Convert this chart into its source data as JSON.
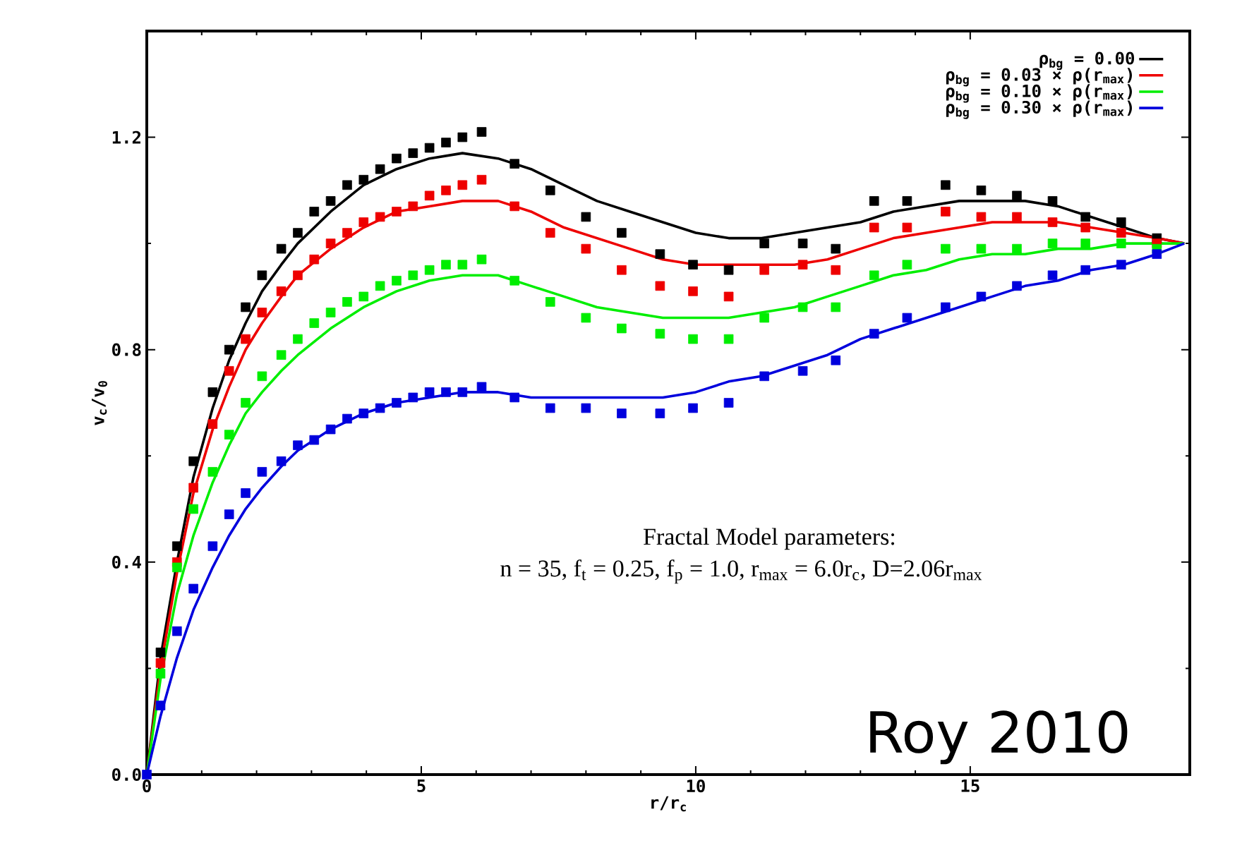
{
  "chart_data": {
    "type": "scatter",
    "xlabel": "r/r$_{c}$",
    "ylabel": "v$_{c}$/v$_{0}$",
    "xlim": [
      0,
      19
    ],
    "ylim": [
      0,
      1.4
    ],
    "xticks": [
      0,
      5,
      10,
      15
    ],
    "yticks": [
      {
        "value": 0,
        "label": "0.0"
      },
      0.4,
      0.8,
      1.2
    ],
    "legend": "top right",
    "series": [
      {
        "marker": "square",
        "color": "#000000",
        "x": [
          0.25,
          0.55,
          0.85,
          1.2,
          1.5,
          1.8,
          2.1,
          2.45,
          2.75,
          3.05,
          3.35,
          3.65,
          3.95,
          4.25,
          4.55,
          4.85,
          5.15,
          5.45,
          5.75,
          6.1,
          6.7,
          7.35,
          8.0,
          8.65,
          9.35,
          9.95,
          10.6,
          11.25,
          11.95,
          12.55,
          13.25,
          13.85,
          14.55,
          15.2,
          15.85,
          16.5,
          17.1,
          17.75,
          18.4
        ],
        "values": [
          0.23,
          0.43,
          0.59,
          0.72,
          0.8,
          0.88,
          0.94,
          0.99,
          1.02,
          1.06,
          1.08,
          1.11,
          1.12,
          1.14,
          1.16,
          1.17,
          1.18,
          1.19,
          1.2,
          1.21,
          1.15,
          1.1,
          1.05,
          1.02,
          0.98,
          0.96,
          0.95,
          1.0,
          1.0,
          0.99,
          1.08,
          1.08,
          1.11,
          1.1,
          1.09,
          1.08,
          1.05,
          1.04,
          1.01
        ]
      },
      {
        "marker": "square",
        "color": "#ee0000",
        "x": [
          0.25,
          0.55,
          0.85,
          1.2,
          1.5,
          1.8,
          2.1,
          2.45,
          2.75,
          3.05,
          3.35,
          3.65,
          3.95,
          4.25,
          4.55,
          4.85,
          5.15,
          5.45,
          5.75,
          6.1,
          6.7,
          7.35,
          8.0,
          8.65,
          9.35,
          9.95,
          10.6,
          11.25,
          11.95,
          12.55,
          13.25,
          13.85,
          14.55,
          15.2,
          15.85,
          16.5,
          17.1,
          17.75,
          18.4
        ],
        "values": [
          0.21,
          0.4,
          0.54,
          0.66,
          0.76,
          0.82,
          0.87,
          0.91,
          0.94,
          0.97,
          1.0,
          1.02,
          1.04,
          1.05,
          1.06,
          1.07,
          1.09,
          1.1,
          1.11,
          1.12,
          1.07,
          1.02,
          0.99,
          0.95,
          0.92,
          0.91,
          0.9,
          0.95,
          0.96,
          0.95,
          1.03,
          1.03,
          1.06,
          1.05,
          1.05,
          1.04,
          1.03,
          1.02,
          1.0
        ]
      },
      {
        "marker": "square",
        "color": "#00ee00",
        "x": [
          0.25,
          0.55,
          0.85,
          1.2,
          1.5,
          1.8,
          2.1,
          2.45,
          2.75,
          3.05,
          3.35,
          3.65,
          3.95,
          4.25,
          4.55,
          4.85,
          5.15,
          5.45,
          5.75,
          6.1,
          6.7,
          7.35,
          8.0,
          8.65,
          9.35,
          9.95,
          10.6,
          11.25,
          11.95,
          12.55,
          13.25,
          13.85,
          14.55,
          15.2,
          15.85,
          16.5,
          17.1,
          17.75,
          18.4
        ],
        "values": [
          0.19,
          0.39,
          0.5,
          0.57,
          0.64,
          0.7,
          0.75,
          0.79,
          0.82,
          0.85,
          0.87,
          0.89,
          0.9,
          0.92,
          0.93,
          0.94,
          0.95,
          0.96,
          0.96,
          0.97,
          0.93,
          0.89,
          0.86,
          0.84,
          0.83,
          0.82,
          0.82,
          0.86,
          0.88,
          0.88,
          0.94,
          0.96,
          0.99,
          0.99,
          0.99,
          1.0,
          1.0,
          1.0,
          0.99
        ]
      },
      {
        "marker": "square",
        "color": "#0000dd",
        "x": [
          0,
          0.25,
          0.55,
          0.85,
          1.2,
          1.5,
          1.8,
          2.1,
          2.45,
          2.75,
          3.05,
          3.35,
          3.65,
          3.95,
          4.25,
          4.55,
          4.85,
          5.15,
          5.45,
          5.75,
          6.1,
          6.7,
          7.35,
          8.0,
          8.65,
          9.35,
          9.95,
          10.6,
          11.25,
          11.95,
          12.55,
          13.25,
          13.85,
          14.55,
          15.2,
          15.85,
          16.5,
          17.1,
          17.75,
          18.4
        ],
        "values": [
          0,
          0.13,
          0.27,
          0.35,
          0.43,
          0.49,
          0.53,
          0.57,
          0.59,
          0.62,
          0.63,
          0.65,
          0.67,
          0.68,
          0.69,
          0.7,
          0.71,
          0.72,
          0.72,
          0.72,
          0.73,
          0.71,
          0.69,
          0.69,
          0.68,
          0.68,
          0.69,
          0.7,
          0.75,
          0.76,
          0.78,
          0.83,
          0.86,
          0.88,
          0.9,
          0.92,
          0.94,
          0.95,
          0.96,
          0.98
        ]
      },
      {
        "type": "line",
        "marker": "none",
        "name": "ρ$_{bg}$ = 0.00",
        "color": "#000000",
        "x": [
          0,
          0.25,
          0.55,
          0.85,
          1.2,
          1.5,
          1.8,
          2.1,
          2.45,
          2.75,
          3.35,
          3.95,
          4.55,
          5.15,
          5.75,
          6.4,
          7.0,
          7.6,
          8.2,
          8.8,
          9.4,
          10.0,
          10.6,
          11.2,
          11.8,
          12.4,
          13.0,
          13.6,
          14.2,
          14.8,
          15.4,
          16.0,
          16.6,
          17.2,
          17.8,
          18.4,
          18.9
        ],
        "values": [
          0,
          0.22,
          0.4,
          0.56,
          0.69,
          0.78,
          0.85,
          0.91,
          0.96,
          1.0,
          1.06,
          1.11,
          1.14,
          1.16,
          1.17,
          1.16,
          1.14,
          1.11,
          1.08,
          1.06,
          1.04,
          1.02,
          1.01,
          1.01,
          1.02,
          1.03,
          1.04,
          1.06,
          1.07,
          1.08,
          1.08,
          1.08,
          1.07,
          1.05,
          1.03,
          1.01,
          1.0
        ]
      },
      {
        "type": "line",
        "marker": "none",
        "name": "ρ$_{bg}$ = 0.03 × ρ(r$_{max}$)",
        "color": "#ee0000",
        "x": [
          0,
          0.25,
          0.55,
          0.85,
          1.2,
          1.5,
          1.8,
          2.1,
          2.45,
          2.75,
          3.35,
          3.95,
          4.55,
          5.15,
          5.75,
          6.4,
          7.0,
          7.6,
          8.2,
          8.8,
          9.4,
          10.0,
          10.6,
          11.2,
          11.8,
          12.4,
          13.0,
          13.6,
          14.2,
          14.8,
          15.4,
          16.0,
          16.6,
          17.2,
          17.8,
          18.4,
          18.9
        ],
        "values": [
          0,
          0.2,
          0.38,
          0.53,
          0.65,
          0.73,
          0.8,
          0.85,
          0.9,
          0.94,
          0.99,
          1.03,
          1.06,
          1.07,
          1.08,
          1.08,
          1.06,
          1.03,
          1.01,
          0.99,
          0.97,
          0.96,
          0.96,
          0.96,
          0.96,
          0.97,
          0.99,
          1.01,
          1.02,
          1.03,
          1.04,
          1.04,
          1.04,
          1.03,
          1.02,
          1.01,
          1.0
        ]
      },
      {
        "type": "line",
        "marker": "none",
        "name": "ρ$_{bg}$ = 0.10 × ρ(r$_{max}$)",
        "color": "#00ee00",
        "x": [
          0,
          0.25,
          0.55,
          0.85,
          1.2,
          1.5,
          1.8,
          2.1,
          2.45,
          2.75,
          3.35,
          3.95,
          4.55,
          5.15,
          5.75,
          6.4,
          7.0,
          7.6,
          8.2,
          8.8,
          9.4,
          10.0,
          10.6,
          11.2,
          11.8,
          12.4,
          13.0,
          13.6,
          14.2,
          14.8,
          15.4,
          16.0,
          16.6,
          17.2,
          17.8,
          18.4,
          18.9
        ],
        "values": [
          0,
          0.18,
          0.34,
          0.45,
          0.55,
          0.62,
          0.68,
          0.72,
          0.76,
          0.79,
          0.84,
          0.88,
          0.91,
          0.93,
          0.94,
          0.94,
          0.92,
          0.9,
          0.88,
          0.87,
          0.86,
          0.86,
          0.86,
          0.87,
          0.88,
          0.9,
          0.92,
          0.94,
          0.95,
          0.97,
          0.98,
          0.98,
          0.99,
          0.99,
          1.0,
          1.0,
          1.0
        ]
      },
      {
        "type": "line",
        "marker": "none",
        "name": "ρ$_{bg}$ = 0.30 × ρ(r$_{max}$)",
        "color": "#0000dd",
        "x": [
          0,
          0.25,
          0.55,
          0.85,
          1.2,
          1.5,
          1.8,
          2.1,
          2.45,
          2.75,
          3.35,
          3.95,
          4.55,
          5.15,
          5.75,
          6.4,
          7.0,
          7.6,
          8.2,
          8.8,
          9.4,
          10.0,
          10.6,
          11.2,
          11.8,
          12.4,
          13.0,
          13.6,
          14.2,
          14.8,
          15.4,
          16.0,
          16.6,
          17.2,
          17.8,
          18.4,
          18.9
        ],
        "values": [
          0,
          0.11,
          0.22,
          0.31,
          0.39,
          0.45,
          0.5,
          0.54,
          0.58,
          0.61,
          0.65,
          0.68,
          0.7,
          0.71,
          0.72,
          0.72,
          0.71,
          0.71,
          0.71,
          0.71,
          0.71,
          0.72,
          0.74,
          0.75,
          0.77,
          0.79,
          0.82,
          0.84,
          0.86,
          0.88,
          0.9,
          0.92,
          0.93,
          0.95,
          0.96,
          0.98,
          1.0
        ]
      }
    ],
    "annotations": [
      "Fractal Model parameters:",
      "n = 35, f$_{t}$ = 0.25, f$_{p}$ = 1.0, r$_{max}$ = 6.0r$_{c}$, D=2.06r$_{max}$",
      "Roy 2010"
    ]
  }
}
